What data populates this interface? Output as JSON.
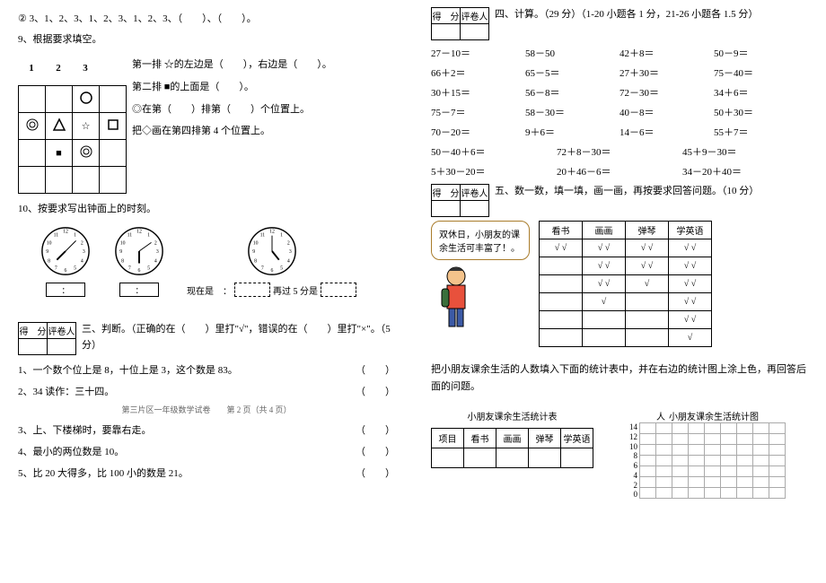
{
  "left": {
    "q2": "②  3、1、2、3、1、2、3、1、2、3、（　　）、（　　）。",
    "q9_title": "9、根据要求填空。",
    "q9_nums": [
      "1",
      "2",
      "3"
    ],
    "q9_lines": [
      "☆的左边是（　　），右边是（　　）。",
      "第二排 ■的上面是（　　）。",
      "◎在第（　　）排第（　　）个位置上。",
      "把◇画在第四排第 4 个位置上。"
    ],
    "q9_rowlabel": "第一排",
    "q10_title": "10、按要求写出钟面上的时刻。",
    "clock_now": "现在是　：",
    "clock_after5": "再过 5 分是",
    "sec3_title": "三、判断。（正确的在（　　）里打\"√\"，错误的在（　　）里打\"×\"。（5 分）",
    "tf": [
      "1、一个数个位上是 8，十位上是 3，这个数是 83。",
      "2、34 读作：三十四。",
      "3、上、下楼梯时，要靠右走。",
      "4、最小的两位数是 10。",
      "5、比 20 大得多，比 100 小的数是 21。"
    ],
    "footer": "第三片区一年级数学试卷　　第 2 页（共 4 页）",
    "score_hdr": [
      "得　分",
      "评卷人"
    ]
  },
  "right": {
    "sec4_title": "四、计算。（29 分）（1-20 小题各 1 分，21-26 小题各 1.5 分）",
    "calc_rows": [
      [
        "27－10＝",
        "58－50",
        "42＋8＝",
        "50－9＝"
      ],
      [
        "66＋2＝",
        "65－5＝",
        "27＋30＝",
        "75－40＝"
      ],
      [
        "30＋15＝",
        "56－8＝",
        "72－30＝",
        "34＋6＝"
      ],
      [
        "75－7＝",
        "58－30＝",
        "40－8＝",
        "50＋30＝"
      ],
      [
        "70－20＝",
        "9＋6＝",
        "14－6＝",
        "55＋7＝"
      ]
    ],
    "calc3_rows": [
      [
        "50－40＋6＝",
        "72＋8－30＝",
        "45＋9－30＝"
      ],
      [
        "5＋30－20＝",
        "20＋46－6＝",
        "34－20＋40＝"
      ]
    ],
    "sec5_title": "五、数一数，填一填，画一画，再按要求回答问题。（10 分）",
    "speech": "双休日，小朋友的课余生活可丰富了！。",
    "act_hdr": [
      "看书",
      "画画",
      "弹琴",
      "学英语"
    ],
    "act_rows": [
      [
        "√ √",
        "√ √",
        "√ √",
        "√ √"
      ],
      [
        "",
        "√ √",
        "√ √",
        "√ √"
      ],
      [
        "",
        "√ √",
        "√",
        "√ √"
      ],
      [
        "",
        "√",
        "",
        "√ √"
      ],
      [
        "",
        "",
        "",
        "√ √"
      ],
      [
        "",
        "",
        "",
        "√"
      ]
    ],
    "q5_instr": "把小朋友课余生活的人数填入下面的统计表中，并在右边的统计图上涂上色，再回答后面的问题。",
    "stat_title": "小朋友课余生活统计表",
    "stat_hdr": [
      "项目",
      "看书",
      "画画",
      "弹琴",
      "学英语"
    ],
    "chart_title": "小朋友课余生活统计图",
    "y_ticks": [
      "人",
      "14",
      "12",
      "10",
      "8",
      "6",
      "4",
      "2",
      "0"
    ],
    "score_hdr": [
      "得　分",
      "评卷人"
    ]
  },
  "colors": {
    "text": "#000000",
    "grid": "#aaaaaa",
    "speech_border": "#a97c2b"
  }
}
